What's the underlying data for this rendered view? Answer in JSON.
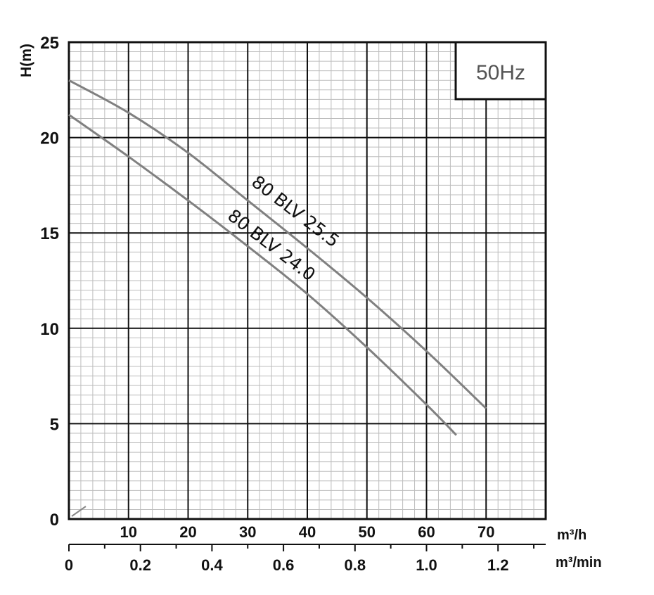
{
  "chart_data": {
    "type": "line",
    "title": "",
    "badge": "50Hz",
    "ylabel": "H(m)",
    "xlabel_primary": "m³/h",
    "xlabel_secondary": "m³/min",
    "xlim": [
      0,
      80
    ],
    "ylim": [
      0,
      25
    ],
    "x_ticks": [
      10,
      20,
      30,
      40,
      50,
      60,
      70
    ],
    "x_ticks_labels": [
      "10",
      "20",
      "30",
      "40",
      "50",
      "60",
      "70"
    ],
    "y_ticks": [
      0,
      5,
      10,
      15,
      20,
      25
    ],
    "y_ticks_labels": [
      "0",
      "5",
      "10",
      "15",
      "20",
      "25"
    ],
    "x2_ticks": [
      0,
      0.2,
      0.4,
      0.6,
      0.8,
      1.0,
      1.2
    ],
    "x2_ticks_labels": [
      "0",
      "0.2",
      "0.4",
      "0.6",
      "0.8",
      "1.0",
      "1.2"
    ],
    "grid": "major and minor",
    "series": [
      {
        "name": "80 BLV 25.5",
        "x": [
          0,
          10,
          20,
          30,
          40,
          50,
          60,
          70
        ],
        "y": [
          23.0,
          21.3,
          19.2,
          16.7,
          14.2,
          11.6,
          8.8,
          5.8
        ]
      },
      {
        "name": "80 BLV 24.0",
        "x": [
          0,
          10,
          20,
          30,
          40,
          50,
          60,
          65
        ],
        "y": [
          21.2,
          19.0,
          16.7,
          14.3,
          11.8,
          9.0,
          6.0,
          4.4
        ]
      }
    ]
  }
}
